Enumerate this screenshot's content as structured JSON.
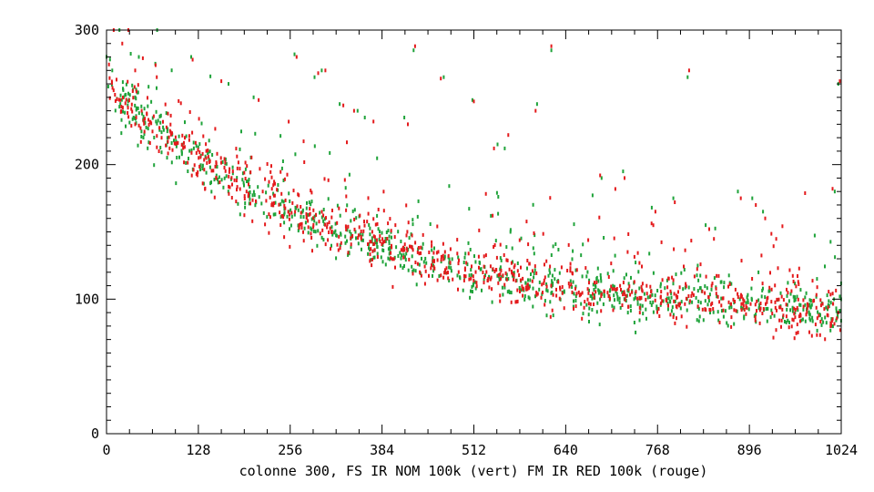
{
  "chart_data": {
    "type": "scatter",
    "title": "",
    "xlabel": "colonne 300, FS IR NOM 100k (vert) FM IR RED 100k (rouge)",
    "ylabel": "",
    "xlim": [
      0,
      1024
    ],
    "ylim": [
      0,
      300
    ],
    "x_ticks": [
      "0",
      "128",
      "256",
      "384",
      "512",
      "640",
      "768",
      "896",
      "1024"
    ],
    "y_ticks": [
      "0",
      "100",
      "200",
      "300"
    ],
    "grid": false,
    "colors": {
      "vert": "#1fa33a",
      "rouge": "#e41a1c",
      "axis": "#000000"
    },
    "trend": {
      "x": [
        0,
        32,
        64,
        96,
        128,
        160,
        192,
        224,
        256,
        320,
        384,
        448,
        512,
        576,
        640,
        704,
        768,
        832,
        896,
        960,
        1024
      ],
      "y": [
        262,
        242,
        228,
        215,
        203,
        193,
        183,
        174,
        166,
        151,
        139,
        129,
        121,
        113,
        107,
        103,
        100,
        98,
        95,
        92,
        90
      ]
    },
    "spread": 9,
    "series": [
      {
        "name": "vert",
        "color": "#1fa33a",
        "n": 900,
        "seed": 11,
        "outliers": [
          [
            8,
            270
          ],
          [
            18,
            300
          ],
          [
            45,
            280
          ],
          [
            68,
            275
          ],
          [
            118,
            280
          ],
          [
            170,
            260
          ],
          [
            205,
            250
          ],
          [
            262,
            282
          ],
          [
            290,
            265
          ],
          [
            300,
            270
          ],
          [
            325,
            245
          ],
          [
            350,
            240
          ],
          [
            360,
            235
          ],
          [
            415,
            235
          ],
          [
            428,
            285
          ],
          [
            470,
            265
          ],
          [
            510,
            248
          ],
          [
            545,
            215
          ],
          [
            555,
            212
          ],
          [
            600,
            245
          ],
          [
            620,
            285
          ],
          [
            690,
            190
          ],
          [
            720,
            195
          ],
          [
            760,
            168
          ],
          [
            790,
            175
          ],
          [
            810,
            265
          ],
          [
            835,
            155
          ],
          [
            880,
            180
          ],
          [
            900,
            175
          ],
          [
            915,
            165
          ],
          [
            1020,
            260
          ],
          [
            1015,
            180
          ]
        ]
      },
      {
        "name": "rouge",
        "color": "#e41a1c",
        "n": 900,
        "seed": 29,
        "outliers": [
          [
            10,
            300
          ],
          [
            22,
            290
          ],
          [
            40,
            270
          ],
          [
            70,
            265
          ],
          [
            120,
            278
          ],
          [
            160,
            262
          ],
          [
            212,
            248
          ],
          [
            265,
            280
          ],
          [
            295,
            268
          ],
          [
            305,
            270
          ],
          [
            330,
            244
          ],
          [
            345,
            240
          ],
          [
            372,
            232
          ],
          [
            420,
            230
          ],
          [
            430,
            288
          ],
          [
            466,
            264
          ],
          [
            512,
            247
          ],
          [
            540,
            212
          ],
          [
            560,
            222
          ],
          [
            598,
            240
          ],
          [
            620,
            288
          ],
          [
            688,
            192
          ],
          [
            722,
            190
          ],
          [
            765,
            165
          ],
          [
            792,
            172
          ],
          [
            812,
            270
          ],
          [
            840,
            152
          ],
          [
            884,
            175
          ],
          [
            905,
            170
          ],
          [
            918,
            160
          ],
          [
            1022,
            262
          ],
          [
            1012,
            182
          ]
        ]
      }
    ]
  }
}
